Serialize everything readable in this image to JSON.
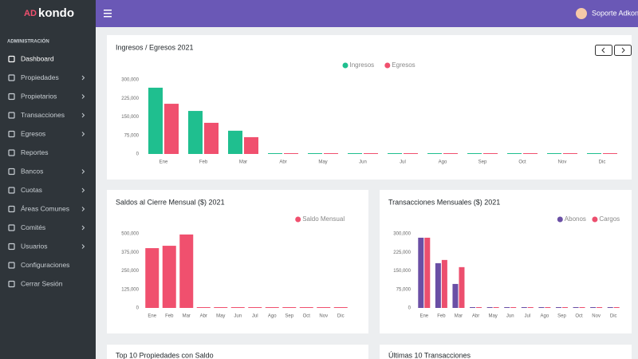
{
  "brand": {
    "prefix": "AD",
    "name": "kondo"
  },
  "topbar": {
    "user": "Soporte Adkondo"
  },
  "sidebar": {
    "section": "ADMINISTRACIÓN",
    "items": [
      {
        "label": "Dashboard",
        "active": true,
        "submenu": false
      },
      {
        "label": "Propiedades",
        "active": false,
        "submenu": true
      },
      {
        "label": "Propietarios",
        "active": false,
        "submenu": true
      },
      {
        "label": "Transacciones",
        "active": false,
        "submenu": true
      },
      {
        "label": "Egresos",
        "active": false,
        "submenu": true
      },
      {
        "label": "Reportes",
        "active": false,
        "submenu": false
      },
      {
        "label": "Bancos",
        "active": false,
        "submenu": true
      },
      {
        "label": "Cuotas",
        "active": false,
        "submenu": true
      },
      {
        "label": "Áreas Comunes",
        "active": false,
        "submenu": true
      },
      {
        "label": "Comités",
        "active": false,
        "submenu": true
      },
      {
        "label": "Usuarios",
        "active": false,
        "submenu": true
      },
      {
        "label": "Configuraciones",
        "active": false,
        "submenu": false
      },
      {
        "label": "Cerrar Sesión",
        "active": false,
        "submenu": false
      }
    ]
  },
  "chart_data": [
    {
      "type": "bar",
      "title": "Ingresos / Egresos 2021",
      "legend": "top",
      "categories": [
        "Ene",
        "Feb",
        "Mar",
        "Abr",
        "May",
        "Jun",
        "Jul",
        "Ago",
        "Sep",
        "Oct",
        "Nov",
        "Dic"
      ],
      "series": [
        {
          "name": "Ingresos",
          "color": "#1fbf8f",
          "values": [
            268000,
            174000,
            94000,
            0,
            0,
            0,
            0,
            0,
            0,
            0,
            0,
            0
          ]
        },
        {
          "name": "Egresos",
          "color": "#f0506e",
          "values": [
            203000,
            126000,
            68000,
            0,
            0,
            0,
            0,
            0,
            0,
            0,
            0,
            0
          ]
        }
      ],
      "ylim": [
        0,
        300000
      ],
      "yticks": [
        0,
        {
          "value": 75000,
          "label": "75,000"
        },
        {
          "value": 150000,
          "label": "150,000"
        },
        {
          "value": 225000,
          "label": "225,000"
        },
        {
          "value": 300000,
          "label": "300,000"
        }
      ]
    },
    {
      "type": "bar",
      "title": "Saldos al Cierre Mensual ($) 2021",
      "legend": "top-right",
      "categories": [
        "Ene",
        "Feb",
        "Mar",
        "Abr",
        "May",
        "Jun",
        "Jul",
        "Ago",
        "Sep",
        "Oct",
        "Nov",
        "Dic"
      ],
      "series": [
        {
          "name": "Saldo Mensual",
          "color": "#f0506e",
          "values": [
            403000,
            419000,
            495000,
            0,
            0,
            0,
            0,
            0,
            0,
            0,
            0,
            0
          ]
        }
      ],
      "ylim": [
        0,
        500000
      ],
      "yticks": [
        0,
        {
          "value": 125000,
          "label": "125,000"
        },
        {
          "value": 250000,
          "label": "250,000"
        },
        {
          "value": 375000,
          "label": "375,000"
        },
        {
          "value": 500000,
          "label": "500,000"
        }
      ]
    },
    {
      "type": "bar",
      "title": "Transacciones Mensuales ($) 2021",
      "legend": "top-right",
      "categories": [
        "Ene",
        "Feb",
        "Mar",
        "Abr",
        "May",
        "Jun",
        "Jul",
        "Ago",
        "Sep",
        "Oct",
        "Nov",
        "Dic"
      ],
      "series": [
        {
          "name": "Abonos",
          "color": "#6a4fa5",
          "values": [
            284000,
            181000,
            97000,
            0,
            0,
            0,
            0,
            0,
            0,
            0,
            0,
            0
          ]
        },
        {
          "name": "Cargos",
          "color": "#ec4f6e",
          "values": [
            284000,
            194000,
            165000,
            0,
            0,
            0,
            0,
            0,
            0,
            0,
            0,
            0
          ]
        }
      ],
      "ylim": [
        0,
        300000
      ],
      "yticks": [
        0,
        {
          "value": 75000,
          "label": "75,000"
        },
        {
          "value": 150000,
          "label": "150,000"
        },
        {
          "value": 225000,
          "label": "225,000"
        },
        {
          "value": 300000,
          "label": "300,000"
        }
      ]
    }
  ],
  "panels": [
    "Top 10 Propiedades con Saldo",
    "Últimas 10 Transacciones"
  ]
}
